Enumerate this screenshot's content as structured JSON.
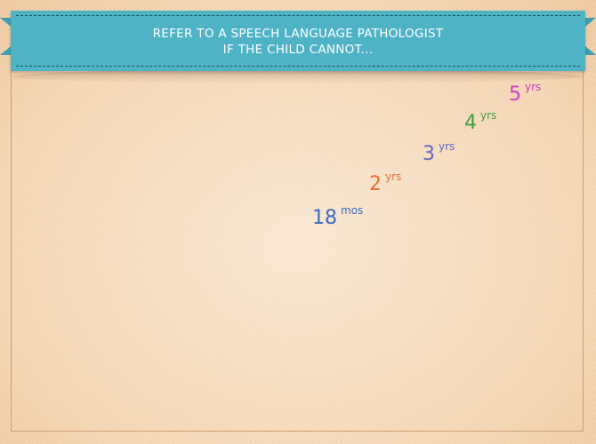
{
  "banner": {
    "line1": "REFER TO A SPEECH LANGUAGE PATHOLOGIST",
    "line2": "IF THE CHILD CANNOT..."
  },
  "ages": [
    {
      "value": "18",
      "unit": "mos",
      "color": "#3b6ac0"
    },
    {
      "value": "2",
      "unit": "yrs",
      "color": "#f06a35"
    },
    {
      "value": "3",
      "unit": "yrs",
      "color": "#6767c7"
    },
    {
      "value": "4",
      "unit": "yrs",
      "color": "#3e9e3c"
    },
    {
      "value": "5",
      "unit": "yrs",
      "color": "#d23bc4"
    }
  ]
}
